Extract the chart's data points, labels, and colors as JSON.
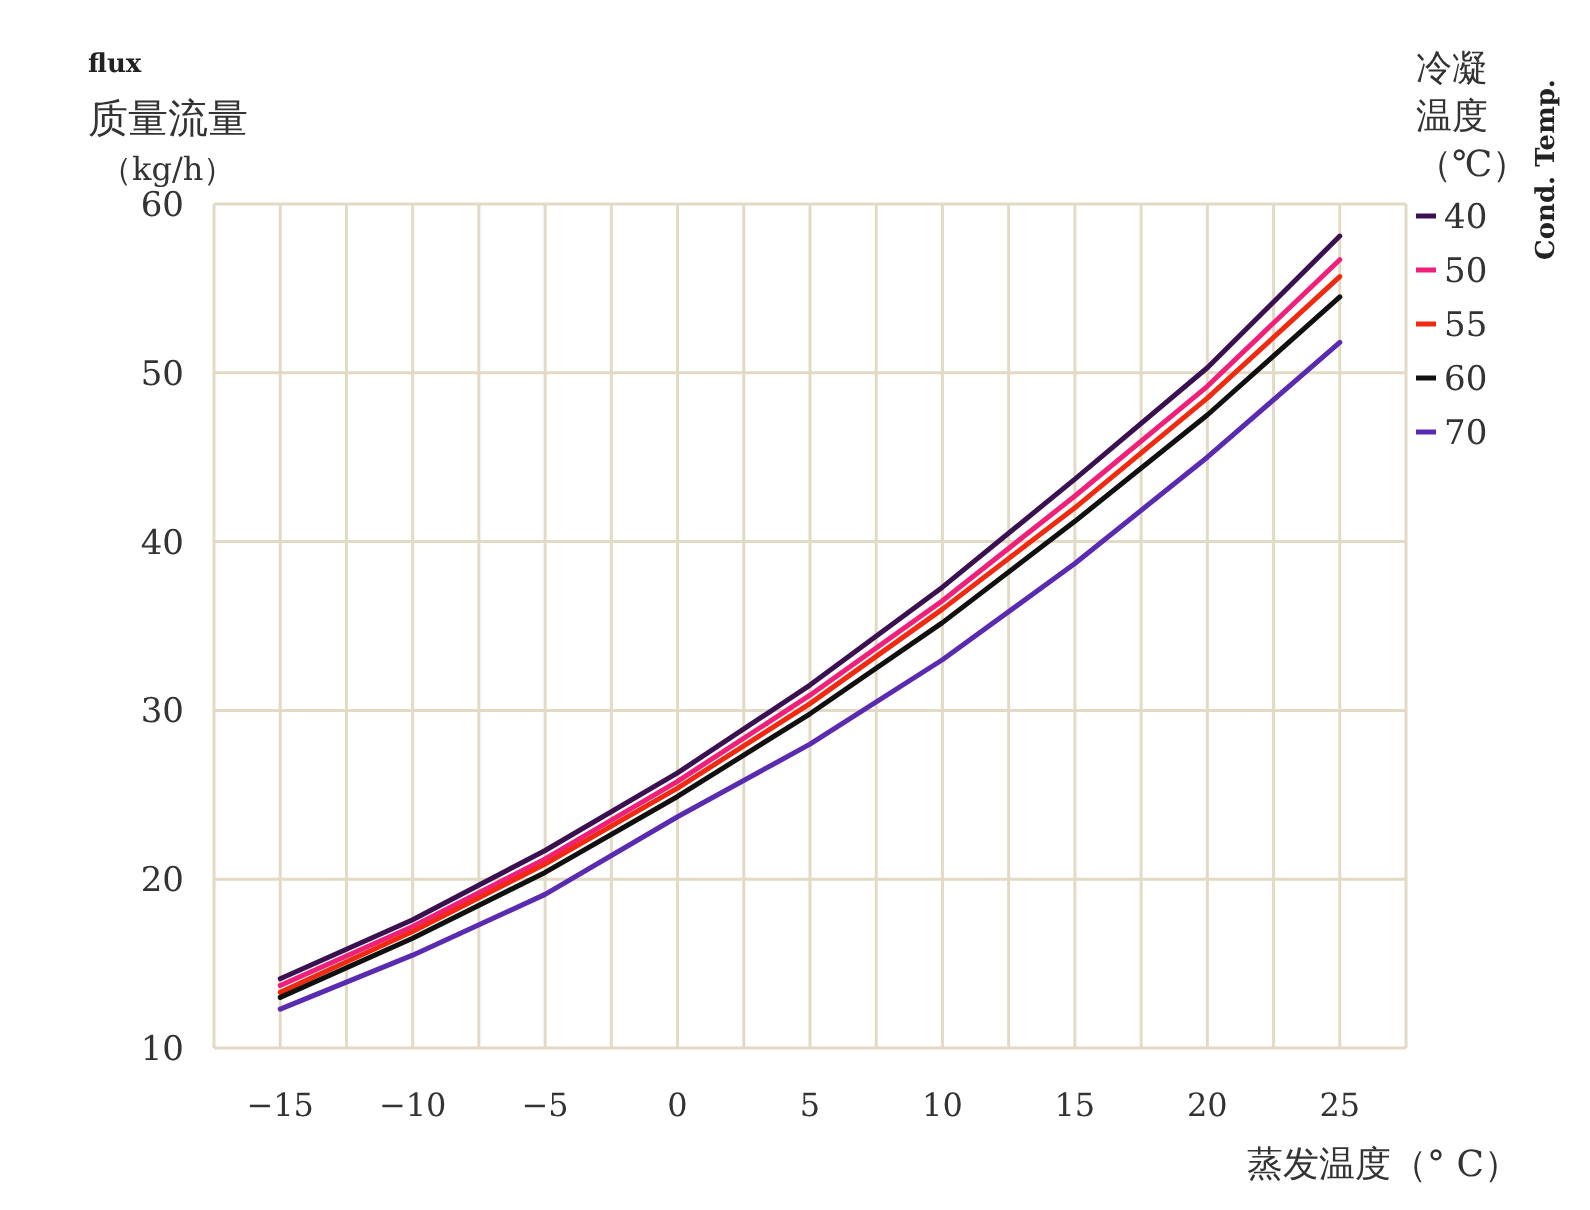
{
  "chart_data": {
    "type": "line",
    "ylabel": "质量流量（kg/h）",
    "xlabel": "蒸发温度（° C）",
    "legend_title": "冷凝温度（℃）",
    "legend": "right",
    "annotations": [
      "flux",
      "Cond. Temp."
    ],
    "x": [
      -15,
      -10,
      -5,
      0,
      5,
      10,
      15,
      20,
      25
    ],
    "xlim": [
      -17.5,
      27.5
    ],
    "xticks": [
      {
        "value": -17.5,
        "label": null
      },
      -15,
      {
        "value": -12.5,
        "label": null
      },
      -10,
      {
        "value": -7.5,
        "label": null
      },
      -5,
      {
        "value": -2.5,
        "label": null
      },
      0,
      {
        "value": 2.5,
        "label": null
      },
      5,
      {
        "value": 7.5,
        "label": null
      },
      10,
      {
        "value": 12.5,
        "label": null
      },
      15,
      {
        "value": 17.5,
        "label": null
      },
      20,
      {
        "value": 22.5,
        "label": null
      },
      25,
      {
        "value": 27.5,
        "label": null
      }
    ],
    "ylim": [
      10,
      60
    ],
    "yticks": [
      10,
      20,
      30,
      40,
      50,
      60
    ],
    "grid": true,
    "marker": "none",
    "line_style": "solid",
    "series": [
      {
        "name": "40",
        "color": "#3a1050",
        "values": [
          14.1,
          17.6,
          21.7,
          26.3,
          31.5,
          37.3,
          43.7,
          50.3,
          58.1
        ]
      },
      {
        "name": "50",
        "color": "#f0207a",
        "values": [
          13.7,
          17.2,
          21.2,
          25.8,
          30.9,
          36.5,
          42.7,
          49.2,
          56.7
        ]
      },
      {
        "name": "55",
        "color": "#f02a10",
        "values": [
          13.3,
          16.9,
          20.9,
          25.4,
          30.4,
          36.0,
          42.0,
          48.5,
          55.7
        ]
      },
      {
        "name": "60",
        "color": "#101010",
        "values": [
          13.0,
          16.5,
          20.4,
          24.9,
          29.8,
          35.2,
          41.2,
          47.5,
          54.5
        ]
      },
      {
        "name": "70",
        "color": "#5a2ab0",
        "values": [
          12.3,
          15.5,
          19.1,
          23.7,
          28.0,
          33.0,
          38.7,
          45.0,
          51.8
        ]
      }
    ]
  }
}
